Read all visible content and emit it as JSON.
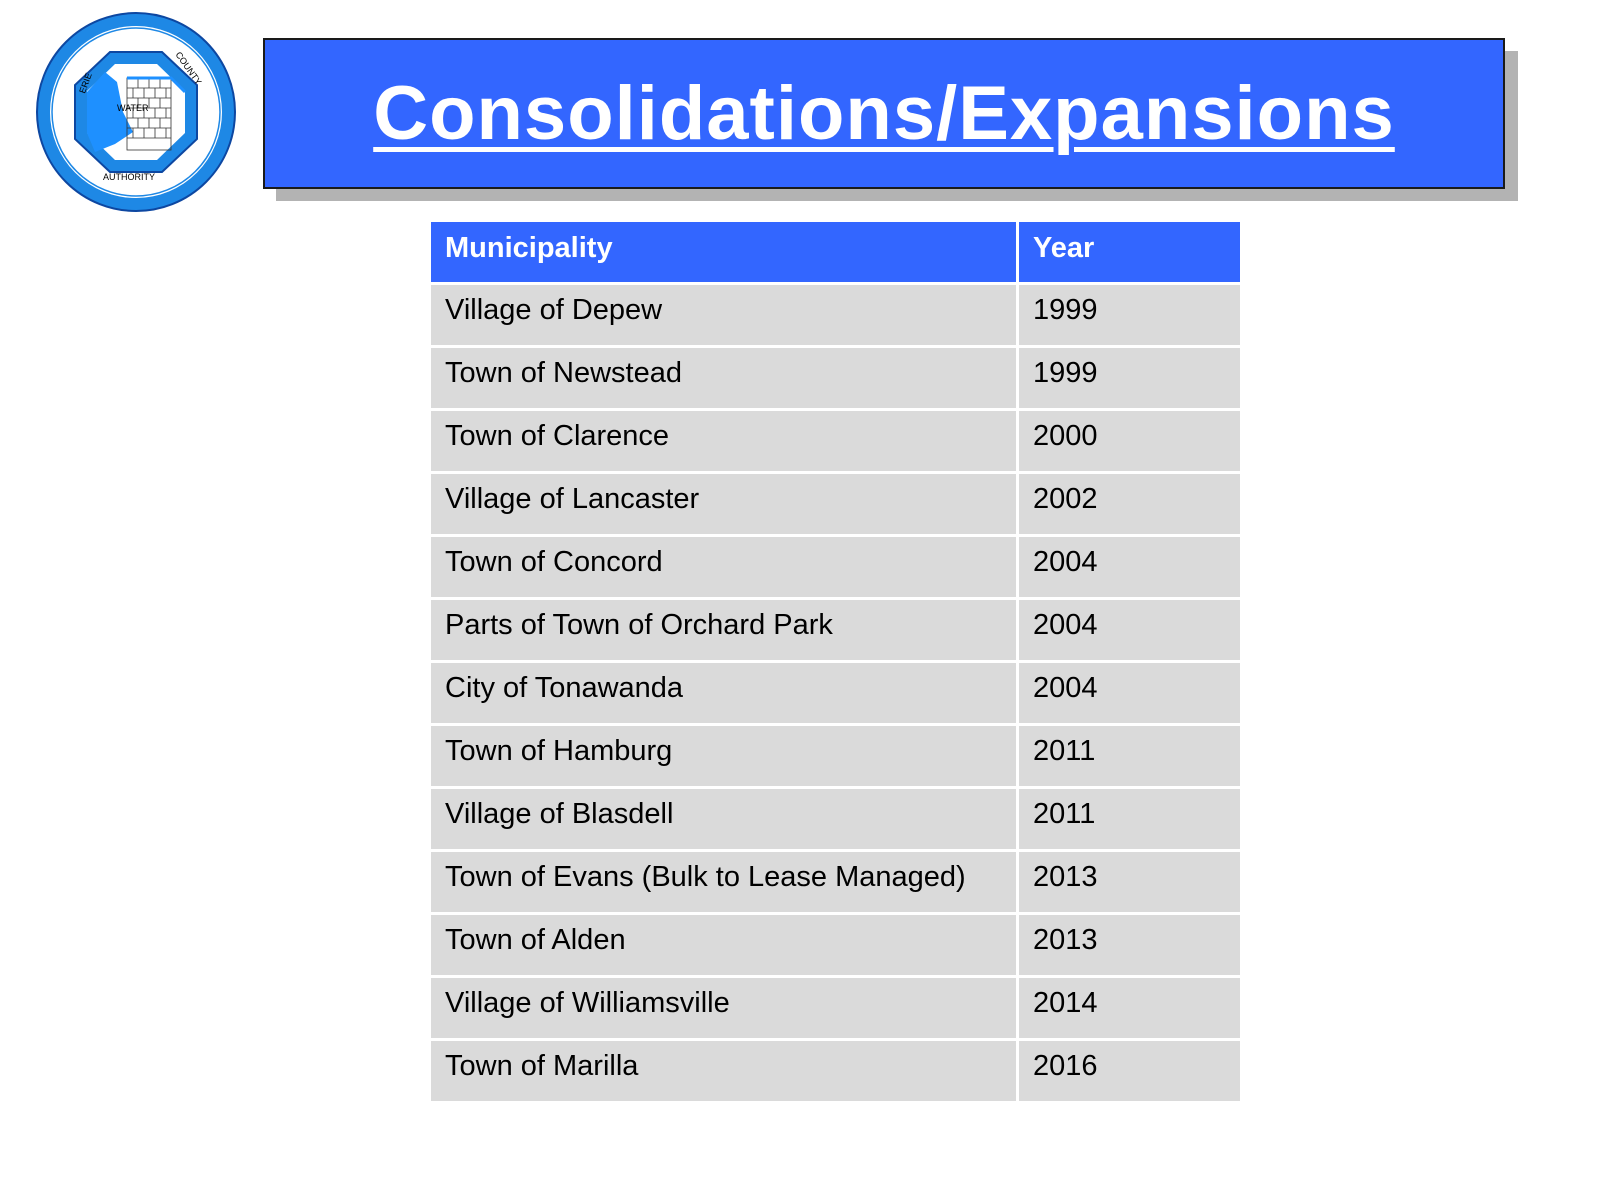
{
  "logo": {
    "ring_text_top": "COUNTY",
    "ring_text_left": "ERIE",
    "ring_text_bottom": "AUTHORITY",
    "center_text": "WATER",
    "colors": {
      "ring": "#1e88e5",
      "inner": "#ffffff",
      "water": "#1e90ff"
    }
  },
  "title": "Consolidations/Expansions",
  "table": {
    "headers": [
      "Municipality",
      "Year"
    ],
    "rows": [
      [
        "Village of Depew",
        "1999"
      ],
      [
        "Town of Newstead",
        "1999"
      ],
      [
        "Town of Clarence",
        "2000"
      ],
      [
        "Village of Lancaster",
        "2002"
      ],
      [
        "Town of Concord",
        "2004"
      ],
      [
        "Parts of Town of Orchard Park",
        "2004"
      ],
      [
        "City of Tonawanda",
        "2004"
      ],
      [
        "Town of Hamburg",
        "2011"
      ],
      [
        "Village of Blasdell",
        "2011"
      ],
      [
        "Town of Evans (Bulk to Lease Managed)",
        "2013"
      ],
      [
        "Town of Alden",
        "2013"
      ],
      [
        "Village of Williamsville",
        "2014"
      ],
      [
        "Town of Marilla",
        "2016"
      ]
    ]
  },
  "colors": {
    "accent": "#3366ff",
    "row_fill": "#dadada",
    "shadow": "#b3b3b3"
  }
}
